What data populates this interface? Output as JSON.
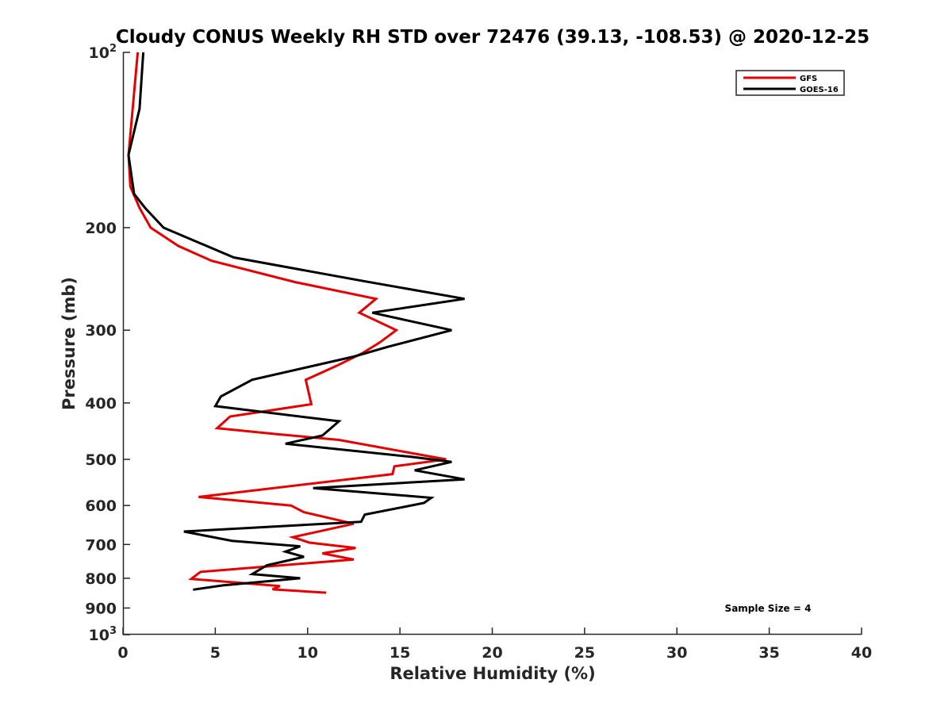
{
  "chart_data": {
    "type": "line",
    "title": "Cloudy CONUS Weekly RH STD over 72476 (39.13, -108.53) @ 2020-12-25",
    "xlabel": "Relative Humidity (%)",
    "ylabel": "Pressure (mb)",
    "xlim": [
      0,
      40
    ],
    "ylim": [
      100,
      1000
    ],
    "y_scale": "log",
    "y_reversed": true,
    "grid": false,
    "legend_position": "top-right",
    "x_ticks": [
      0,
      5,
      10,
      15,
      20,
      25,
      30,
      35,
      40
    ],
    "x_tick_labels": [
      "0",
      "5",
      "10",
      "15",
      "20",
      "25",
      "30",
      "35",
      "40"
    ],
    "y_ticks": [
      {
        "value": 100,
        "base": "10",
        "exp": "2"
      },
      {
        "value": 200,
        "label": "200"
      },
      {
        "value": 300,
        "label": "300"
      },
      {
        "value": 400,
        "label": "400"
      },
      {
        "value": 500,
        "label": "500"
      },
      {
        "value": 600,
        "label": "600"
      },
      {
        "value": 700,
        "label": "700"
      },
      {
        "value": 800,
        "label": "800"
      },
      {
        "value": 900,
        "label": "900"
      },
      {
        "value": 1000,
        "base": "10",
        "exp": "3"
      }
    ],
    "series": [
      {
        "name": "GFS",
        "color": "#e60000",
        "points": [
          [
            0.8,
            100
          ],
          [
            0.3,
            150
          ],
          [
            0.4,
            170
          ],
          [
            0.9,
            185
          ],
          [
            1.5,
            200
          ],
          [
            3.0,
            215
          ],
          [
            4.8,
            228
          ],
          [
            9.3,
            248
          ],
          [
            13.7,
            265
          ],
          [
            12.8,
            280
          ],
          [
            14.8,
            300
          ],
          [
            13.9,
            315
          ],
          [
            13.0,
            328
          ],
          [
            11.6,
            345
          ],
          [
            9.9,
            365
          ],
          [
            10.2,
            402
          ],
          [
            5.8,
            422
          ],
          [
            5.1,
            442
          ],
          [
            8.5,
            453
          ],
          [
            11.7,
            463
          ],
          [
            15.5,
            487
          ],
          [
            17.5,
            500
          ],
          [
            14.7,
            514
          ],
          [
            14.6,
            530
          ],
          [
            4.1,
            580
          ],
          [
            9.1,
            600
          ],
          [
            9.8,
            616
          ],
          [
            12.5,
            645
          ],
          [
            9.2,
            680
          ],
          [
            10.1,
            695
          ],
          [
            12.6,
            710
          ],
          [
            10.8,
            725
          ],
          [
            12.5,
            743
          ],
          [
            4.2,
            780
          ],
          [
            3.7,
            802
          ],
          [
            8.5,
            825
          ],
          [
            8.1,
            836
          ],
          [
            11.0,
            847
          ]
        ]
      },
      {
        "name": "GOES-16",
        "color": "#000000",
        "points": [
          [
            1.1,
            100
          ],
          [
            0.9,
            125
          ],
          [
            0.3,
            150
          ],
          [
            0.6,
            175
          ],
          [
            1.2,
            185
          ],
          [
            2.2,
            200
          ],
          [
            6.0,
            225
          ],
          [
            13.0,
            247
          ],
          [
            18.5,
            265
          ],
          [
            13.5,
            280
          ],
          [
            17.8,
            300
          ],
          [
            14.4,
            320
          ],
          [
            12.5,
            333
          ],
          [
            7.0,
            365
          ],
          [
            5.3,
            390
          ],
          [
            5.0,
            405
          ],
          [
            11.7,
            430
          ],
          [
            10.8,
            455
          ],
          [
            8.8,
            470
          ],
          [
            15.6,
            495
          ],
          [
            17.8,
            505
          ],
          [
            15.8,
            522
          ],
          [
            18.5,
            541
          ],
          [
            10.3,
            560
          ],
          [
            16.7,
            582
          ],
          [
            16.3,
            594
          ],
          [
            13.1,
            622
          ],
          [
            12.9,
            640
          ],
          [
            3.3,
            665
          ],
          [
            5.9,
            690
          ],
          [
            9.6,
            705
          ],
          [
            8.8,
            720
          ],
          [
            9.8,
            735
          ],
          [
            7.8,
            760
          ],
          [
            7.0,
            787
          ],
          [
            9.6,
            800
          ],
          [
            5.4,
            823
          ],
          [
            3.8,
            837
          ]
        ]
      }
    ],
    "annotation": "Sample Size = 4"
  }
}
